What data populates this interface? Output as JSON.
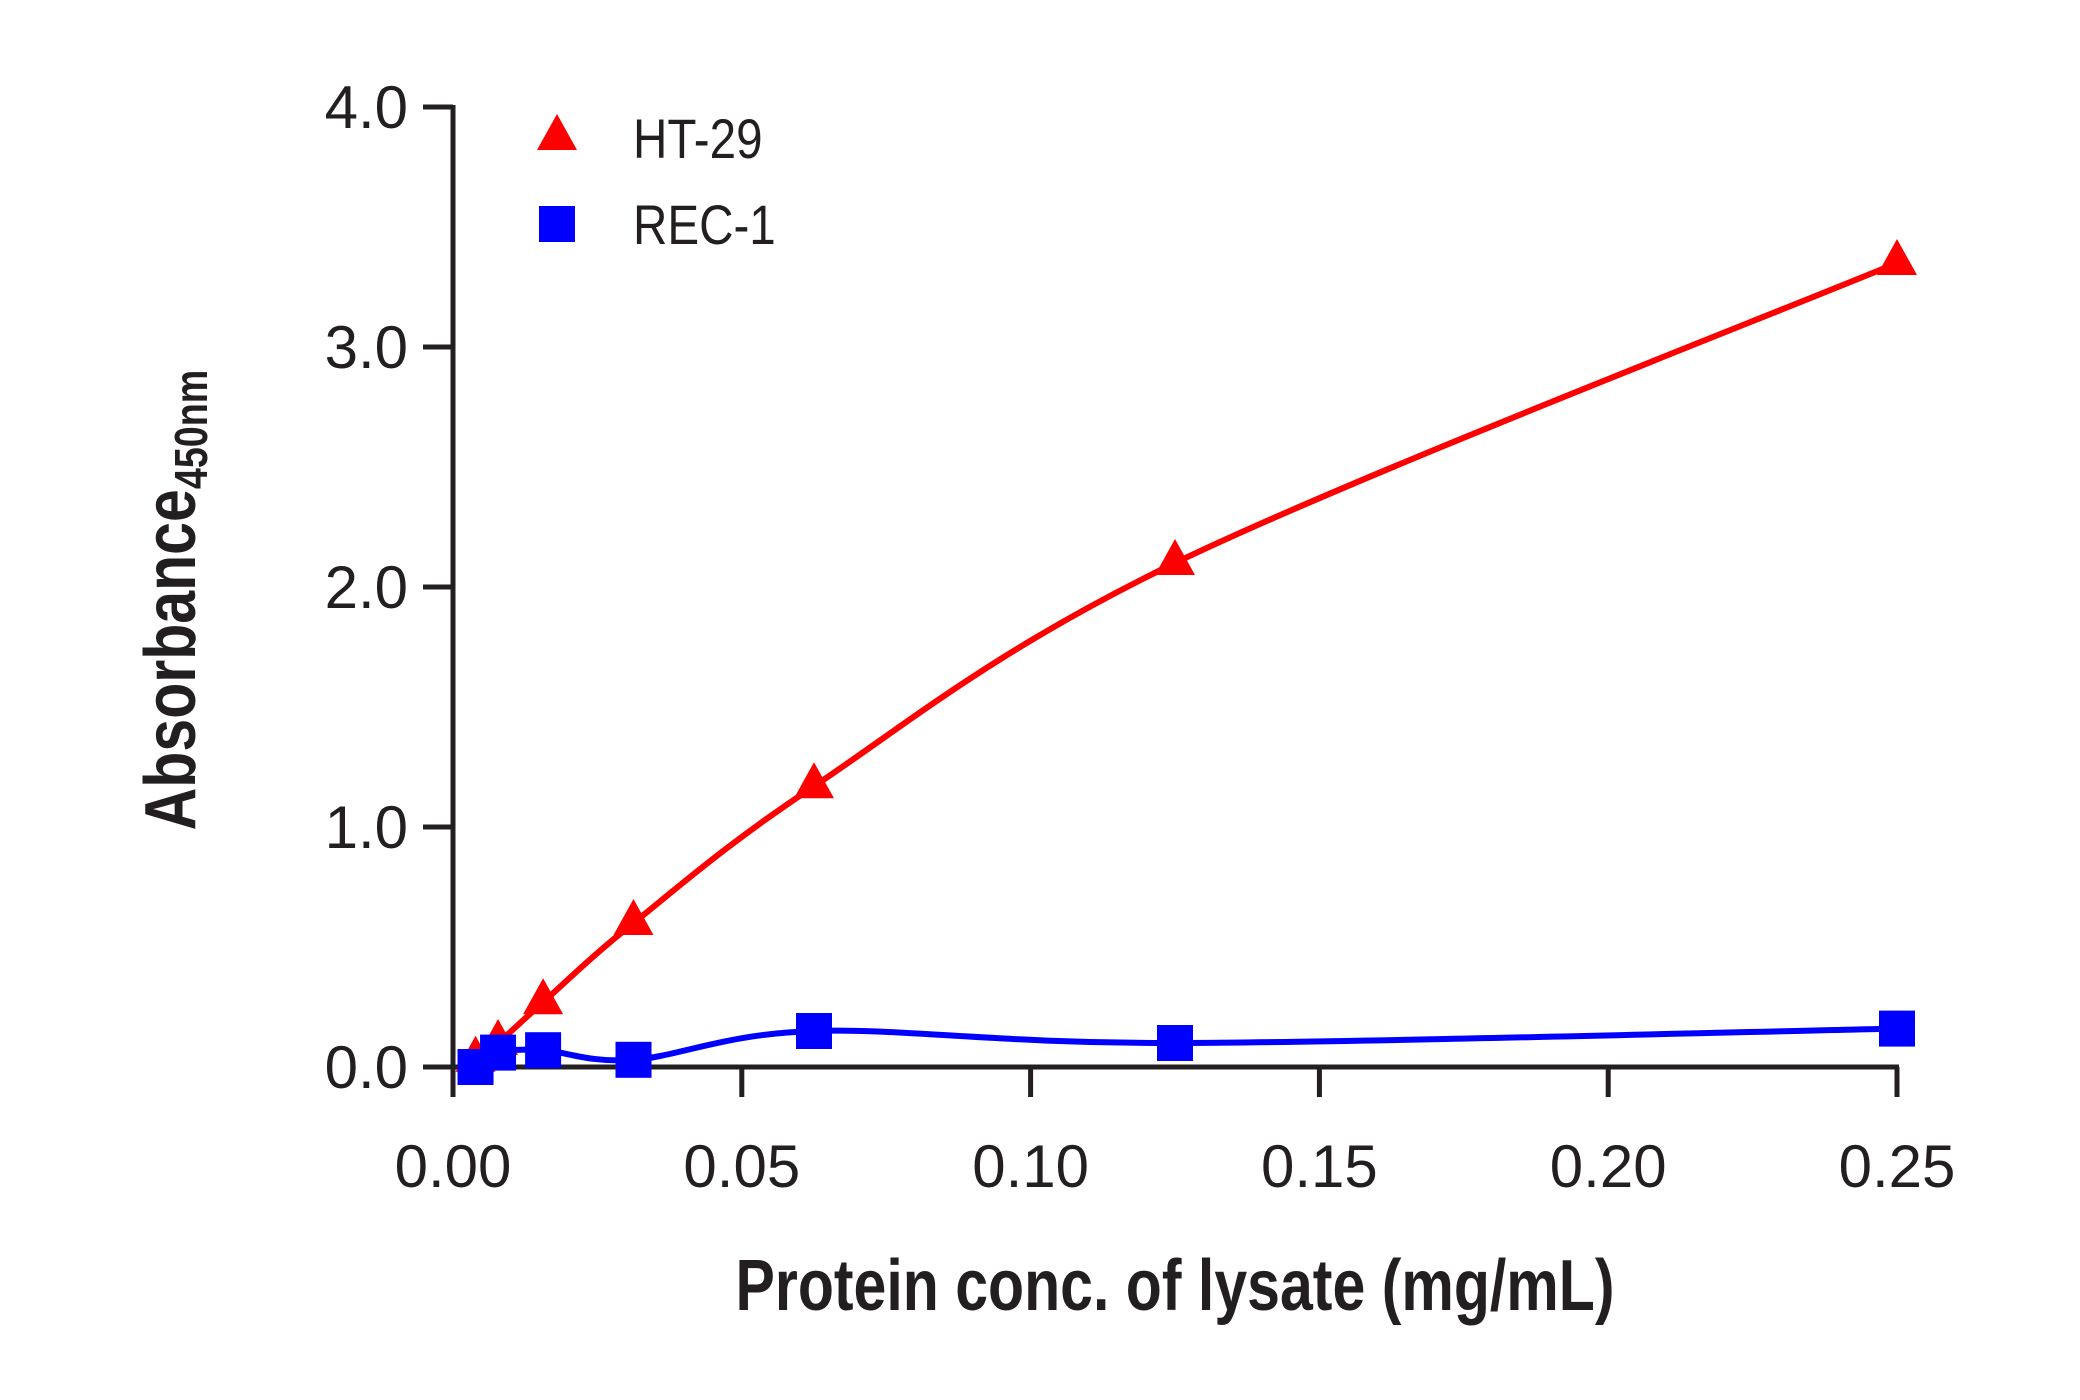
{
  "chart_data": {
    "type": "line",
    "title": "",
    "xlabel": "Protein conc. of lysate (mg/mL)",
    "ylabel": "Absorbance",
    "ylabel_subscript": "450nm",
    "xlim": [
      0,
      0.25
    ],
    "ylim": [
      0,
      4.0
    ],
    "xticks": [
      "0.00",
      "0.05",
      "0.10",
      "0.15",
      "0.20",
      "0.25"
    ],
    "xtick_values": [
      0,
      0.05,
      0.1,
      0.15,
      0.2,
      0.25
    ],
    "yticks": [
      "0.0",
      "1.0",
      "2.0",
      "3.0",
      "4.0"
    ],
    "ytick_values": [
      0,
      1,
      2,
      3,
      4
    ],
    "grid": false,
    "legend_position": "top-left",
    "x": [
      0.0039,
      0.0078,
      0.0156,
      0.03125,
      0.0625,
      0.125,
      0.25
    ],
    "series": [
      {
        "name": "HT-29",
        "marker": "triangle",
        "color": "#ff0000",
        "values": [
          0.03,
          0.1,
          0.27,
          0.6,
          1.17,
          2.1,
          3.35
        ]
      },
      {
        "name": "REC-1",
        "marker": "square",
        "color": "#0000ff",
        "values": [
          0.0,
          0.06,
          0.07,
          0.03,
          0.15,
          0.1,
          0.16
        ]
      }
    ]
  }
}
